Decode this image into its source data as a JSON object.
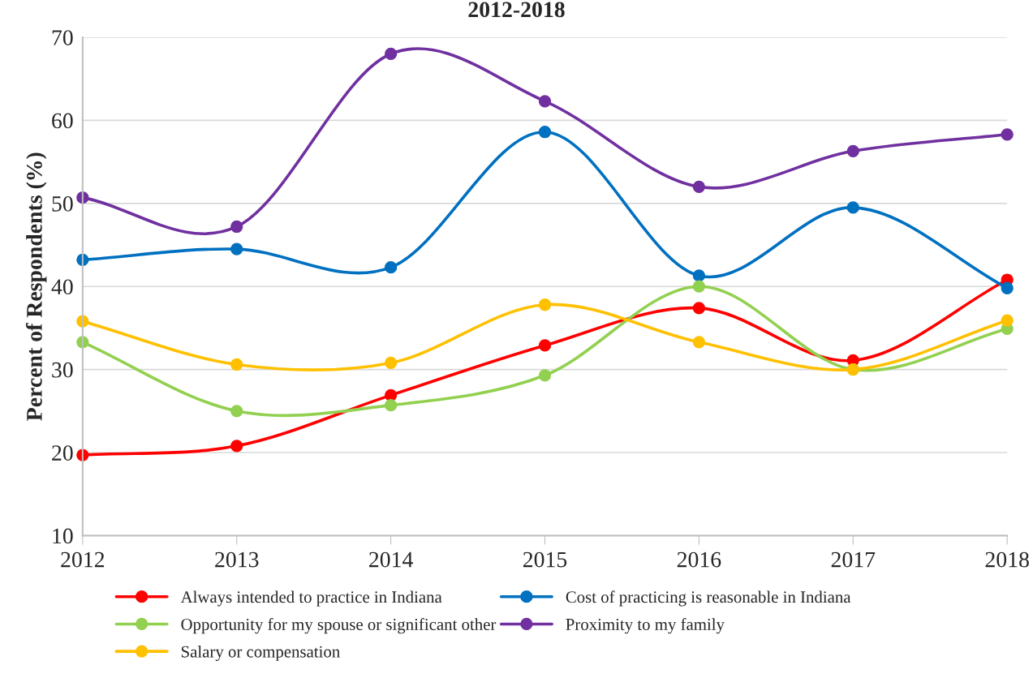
{
  "chart_data": {
    "type": "line",
    "title": "2012-2018",
    "ylabel": "Percent of Respondents (%)",
    "x": [
      2012,
      2013,
      2014,
      2015,
      2016,
      2017,
      2018
    ],
    "xlim": [
      2012,
      2018
    ],
    "xticks": [
      2012,
      2013,
      2014,
      2015,
      2016,
      2017,
      2018
    ],
    "ylim": [
      10,
      70
    ],
    "yticks": [
      10,
      20,
      30,
      40,
      50,
      60,
      70
    ],
    "grid": "y",
    "legend": "bottom",
    "marker": "circle",
    "line_style": "solid",
    "series": [
      {
        "name": "Always intended to practice in Indiana",
        "color": "#ff0000",
        "values": [
          19.7,
          20.8,
          26.9,
          32.9,
          37.4,
          31.1,
          40.8
        ]
      },
      {
        "name": "Cost of practicing is reasonable in Indiana",
        "color": "#0070c0",
        "values": [
          43.2,
          44.5,
          42.3,
          58.6,
          41.3,
          49.5,
          39.8
        ]
      },
      {
        "name": "Opportunity for my spouse or significant other",
        "color": "#92d050",
        "values": [
          33.3,
          25.0,
          25.7,
          29.3,
          40.0,
          30.0,
          34.9
        ]
      },
      {
        "name": "Proximity to my family",
        "color": "#7030a0",
        "values": [
          50.7,
          47.2,
          68.0,
          62.3,
          52.0,
          56.3,
          58.3
        ]
      },
      {
        "name": "Salary or compensation",
        "color": "#ffc000",
        "values": [
          35.8,
          30.6,
          30.8,
          37.8,
          33.3,
          30.0,
          35.9
        ]
      }
    ]
  }
}
